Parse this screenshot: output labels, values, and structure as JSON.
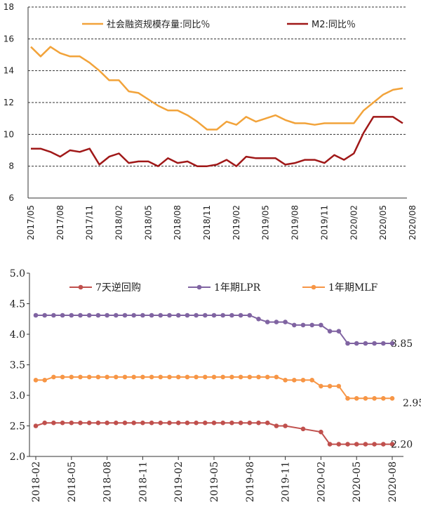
{
  "chart_data": [
    {
      "type": "line",
      "ylim": [
        6,
        18
      ],
      "y_ticks": [
        "6",
        "8",
        "10",
        "12",
        "14",
        "16",
        "18"
      ],
      "x_tick_labels": [
        "2017/05",
        "2017/08",
        "2017/11",
        "2018/02",
        "2018/05",
        "2018/08",
        "2018/11",
        "2019/02",
        "2019/05",
        "2019/08",
        "2019/11",
        "2020/02",
        "2020/05",
        "2020/08"
      ],
      "grid": "horizontal dashed",
      "legend_position": "top",
      "series": [
        {
          "name": "社会融资规模存量:同比％",
          "color": "#F2A33A",
          "values": [
            15.5,
            14.9,
            15.5,
            15.1,
            14.9,
            14.9,
            14.5,
            14.0,
            13.4,
            13.4,
            12.7,
            12.6,
            12.2,
            11.8,
            11.5,
            11.5,
            11.2,
            10.8,
            10.3,
            10.3,
            10.8,
            10.6,
            11.1,
            10.8,
            11.0,
            11.2,
            10.9,
            10.7,
            10.7,
            10.6,
            10.7,
            10.7,
            10.7,
            10.7,
            11.5,
            12.0,
            12.5,
            12.8,
            12.9
          ]
        },
        {
          "name": "M2:同比％",
          "color": "#A01818",
          "values": [
            9.1,
            9.1,
            8.9,
            8.6,
            9.0,
            8.9,
            9.1,
            8.1,
            8.6,
            8.8,
            8.2,
            8.3,
            8.3,
            8.0,
            8.5,
            8.2,
            8.3,
            8.0,
            8.0,
            8.1,
            8.4,
            8.0,
            8.6,
            8.5,
            8.5,
            8.5,
            8.1,
            8.2,
            8.4,
            8.4,
            8.2,
            8.7,
            8.4,
            8.8,
            10.1,
            11.1,
            11.1,
            11.1,
            10.7
          ]
        }
      ]
    },
    {
      "type": "line",
      "ylim": [
        2.0,
        5.0
      ],
      "y_ticks": [
        "2.0",
        "2.5",
        "3.0",
        "3.5",
        "4.0",
        "4.5",
        "5.0"
      ],
      "x_tick_labels": [
        "2018-02",
        "2018-05",
        "2018-08",
        "2018-11",
        "2019-02",
        "2019-05",
        "2019-08",
        "2019-11",
        "2020-02",
        "2020-05",
        "2020-08"
      ],
      "legend_position": "top",
      "series": [
        {
          "name": "7天逆回购",
          "color": "#C0504D",
          "end_label": "2.20",
          "x": [
            0,
            0.5,
            1,
            1.5,
            2,
            2.5,
            3,
            3.5,
            4,
            4.5,
            5,
            5.5,
            6,
            6.5,
            7,
            7.5,
            8,
            8.5,
            9,
            9.5,
            10,
            10.5,
            11,
            11.5,
            12,
            12.5,
            13,
            13.5,
            14,
            15,
            16,
            16.5,
            17,
            17.5,
            18,
            18.5,
            19,
            19.5,
            20
          ],
          "values": [
            2.5,
            2.55,
            2.55,
            2.55,
            2.55,
            2.55,
            2.55,
            2.55,
            2.55,
            2.55,
            2.55,
            2.55,
            2.55,
            2.55,
            2.55,
            2.55,
            2.55,
            2.55,
            2.55,
            2.55,
            2.55,
            2.55,
            2.55,
            2.55,
            2.55,
            2.55,
            2.55,
            2.5,
            2.5,
            2.45,
            2.4,
            2.2,
            2.2,
            2.2,
            2.2,
            2.2,
            2.2,
            2.2,
            2.2
          ]
        },
        {
          "name": "1年期LPR",
          "color": "#8064A2",
          "end_label": "3.85",
          "x": [
            0,
            0.5,
            1,
            1.5,
            2,
            2.5,
            3,
            3.5,
            4,
            4.5,
            5,
            5.5,
            6,
            6.5,
            7,
            7.5,
            8,
            8.5,
            9,
            9.5,
            10,
            10.5,
            11,
            11.5,
            12,
            12.5,
            13,
            13.5,
            14,
            14.5,
            15,
            15.5,
            16,
            16.5,
            17,
            17.5,
            18,
            18.5,
            19,
            19.5,
            20
          ],
          "values": [
            4.31,
            4.31,
            4.31,
            4.31,
            4.31,
            4.31,
            4.31,
            4.31,
            4.31,
            4.31,
            4.31,
            4.31,
            4.31,
            4.31,
            4.31,
            4.31,
            4.31,
            4.31,
            4.31,
            4.31,
            4.31,
            4.31,
            4.31,
            4.31,
            4.31,
            4.25,
            4.2,
            4.2,
            4.2,
            4.15,
            4.15,
            4.15,
            4.15,
            4.05,
            4.05,
            3.85,
            3.85,
            3.85,
            3.85,
            3.85,
            3.85
          ]
        },
        {
          "name": "1年期MLF",
          "color": "#F79646",
          "end_label": "2.95",
          "x": [
            0,
            0.5,
            1,
            1.5,
            2,
            2.5,
            3,
            3.5,
            4,
            4.5,
            5,
            5.5,
            6,
            6.5,
            7,
            7.5,
            8,
            8.5,
            9,
            9.5,
            10,
            10.5,
            11,
            11.5,
            12,
            12.5,
            13,
            13.5,
            14,
            14.5,
            15,
            15.5,
            16,
            16.5,
            17,
            17.5,
            18,
            18.5,
            19,
            19.5,
            20
          ],
          "values": [
            3.25,
            3.25,
            3.3,
            3.3,
            3.3,
            3.3,
            3.3,
            3.3,
            3.3,
            3.3,
            3.3,
            3.3,
            3.3,
            3.3,
            3.3,
            3.3,
            3.3,
            3.3,
            3.3,
            3.3,
            3.3,
            3.3,
            3.3,
            3.3,
            3.3,
            3.3,
            3.3,
            3.3,
            3.25,
            3.25,
            3.25,
            3.25,
            3.15,
            3.15,
            3.15,
            2.95,
            2.95,
            2.95,
            2.95,
            2.95,
            2.95
          ]
        }
      ]
    }
  ]
}
